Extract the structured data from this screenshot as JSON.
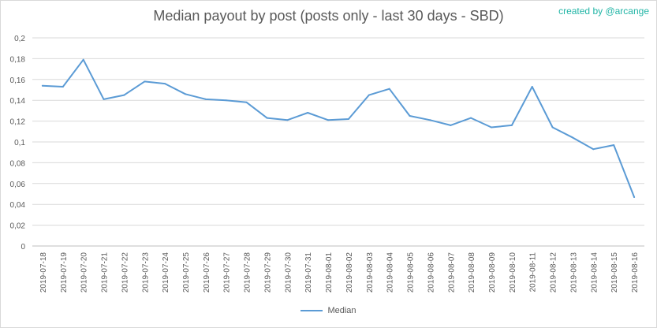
{
  "chart_data": {
    "type": "line",
    "title": "Median payout by post (posts only - last 30 days - SBD)",
    "credit": "created by @arcange",
    "xlabel": "",
    "ylabel": "",
    "ylim": [
      0,
      0.2
    ],
    "yticks": [
      "0",
      "0,02",
      "0,04",
      "0,06",
      "0,08",
      "0,1",
      "0,12",
      "0,14",
      "0,16",
      "0,18",
      "0,2"
    ],
    "grid": true,
    "legend_position": "bottom",
    "categories": [
      "2019-07-18",
      "2019-07-19",
      "2019-07-20",
      "2019-07-21",
      "2019-07-22",
      "2019-07-23",
      "2019-07-24",
      "2019-07-25",
      "2019-07-26",
      "2019-07-27",
      "2019-07-28",
      "2019-07-29",
      "2019-07-30",
      "2019-07-31",
      "2019-08-01",
      "2019-08-02",
      "2019-08-03",
      "2019-08-04",
      "2019-08-05",
      "2019-08-06",
      "2019-08-07",
      "2019-08-08",
      "2019-08-09",
      "2019-08-10",
      "2019-08-11",
      "2019-08-12",
      "2019-08-13",
      "2019-08-14",
      "2019-08-15",
      "2019-08-16"
    ],
    "series": [
      {
        "name": "Median",
        "color": "#5b9bd5",
        "values": [
          0.154,
          0.153,
          0.179,
          0.141,
          0.145,
          0.158,
          0.156,
          0.146,
          0.141,
          0.14,
          0.138,
          0.123,
          0.121,
          0.128,
          0.121,
          0.122,
          0.145,
          0.151,
          0.125,
          0.121,
          0.116,
          0.123,
          0.114,
          0.116,
          0.153,
          0.114,
          0.104,
          0.093,
          0.097,
          0.047
        ]
      }
    ]
  }
}
